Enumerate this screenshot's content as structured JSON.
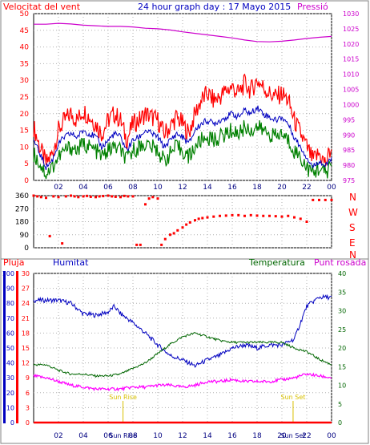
{
  "colors": {
    "wind": "#ff0000",
    "gust_avg": "#0000c0",
    "wind_min": "#008000",
    "pressure": "#cc00cc",
    "direction": "#ff0000",
    "humidity": "#0000c0",
    "temperature": "#006600",
    "dew": "#ff00ff",
    "rain": "#ff0000",
    "sunmark": "#d8c000"
  },
  "chart_data": [
    {
      "type": "line",
      "title": "24 hour graph day : 17 Mayo 2015",
      "left_label": "Velocitat del vent",
      "right_label": "Pressió",
      "x": {
        "ticks": [
          "02",
          "04",
          "06",
          "08",
          "10",
          "12",
          "14",
          "16",
          "18",
          "20",
          "22",
          "00"
        ]
      },
      "yleft": {
        "ticks": [
          "0",
          "5",
          "10",
          "15",
          "20",
          "25",
          "30",
          "35",
          "40",
          "45",
          "50"
        ],
        "ylim": [
          0,
          50
        ]
      },
      "yright": {
        "ticks": [
          "975",
          "980",
          "985",
          "990",
          "995",
          "1000",
          "1005",
          "1010",
          "1015",
          "1020",
          "1025",
          "1030"
        ],
        "ylim": [
          975,
          1030
        ]
      },
      "series": [
        {
          "key": "max",
          "hours": [
            0,
            0.5,
            1,
            1.5,
            2,
            2.5,
            3,
            3.5,
            4,
            4.5,
            5,
            5.5,
            6,
            6.5,
            7,
            7.5,
            8,
            8.5,
            9,
            9.5,
            10,
            10.5,
            11,
            11.5,
            12,
            12.5,
            13,
            13.5,
            14,
            14.5,
            15,
            15.5,
            16,
            16.5,
            17,
            17.5,
            18,
            18.5,
            19,
            19.5,
            20,
            20.5,
            21,
            21.5,
            22,
            22.5,
            23,
            23.5,
            24
          ],
          "values": [
            16,
            10,
            5,
            8,
            15,
            18,
            20,
            18,
            21,
            19,
            17,
            14,
            18,
            20,
            18,
            12,
            17,
            18,
            20,
            19,
            18,
            14,
            16,
            19,
            17,
            14,
            20,
            24,
            26,
            24,
            25,
            27,
            28,
            26,
            29,
            27,
            30,
            28,
            26,
            25,
            26,
            24,
            18,
            14,
            10,
            6,
            8,
            5,
            10
          ]
        },
        {
          "key": "avg",
          "hours": [
            0,
            0.5,
            1,
            1.5,
            2,
            2.5,
            3,
            3.5,
            4,
            4.5,
            5,
            5.5,
            6,
            6.5,
            7,
            7.5,
            8,
            8.5,
            9,
            9.5,
            10,
            10.5,
            11,
            11.5,
            12,
            12.5,
            13,
            13.5,
            14,
            14.5,
            15,
            15.5,
            16,
            16.5,
            17,
            17.5,
            18,
            18.5,
            19,
            19.5,
            20,
            20.5,
            21,
            21.5,
            22,
            22.5,
            23,
            23.5,
            24
          ],
          "values": [
            12,
            8,
            4,
            6,
            11,
            13,
            14,
            13,
            15,
            14,
            13,
            10,
            12,
            14,
            13,
            9,
            12,
            13,
            15,
            14,
            13,
            10,
            12,
            14,
            13,
            11,
            15,
            17,
            18,
            17,
            18,
            19,
            20,
            19,
            21,
            20,
            22,
            20,
            19,
            18,
            19,
            17,
            13,
            10,
            7,
            4,
            6,
            4,
            7
          ]
        },
        {
          "key": "min",
          "hours": [
            0,
            0.5,
            1,
            1.5,
            2,
            2.5,
            3,
            3.5,
            4,
            4.5,
            5,
            5.5,
            6,
            6.5,
            7,
            7.5,
            8,
            8.5,
            9,
            9.5,
            10,
            10.5,
            11,
            11.5,
            12,
            12.5,
            13,
            13.5,
            14,
            14.5,
            15,
            15.5,
            16,
            16.5,
            17,
            17.5,
            18,
            18.5,
            19,
            19.5,
            20,
            20.5,
            21,
            21.5,
            22,
            22.5,
            23,
            23.5,
            24
          ],
          "values": [
            8,
            5,
            2,
            4,
            7,
            9,
            10,
            9,
            11,
            10,
            9,
            7,
            9,
            10,
            9,
            6,
            9,
            10,
            11,
            10,
            9,
            6,
            8,
            10,
            9,
            7,
            10,
            12,
            13,
            12,
            13,
            14,
            15,
            14,
            16,
            15,
            16,
            15,
            14,
            13,
            14,
            12,
            9,
            7,
            4,
            2,
            4,
            2,
            5
          ]
        },
        {
          "key": "pressure",
          "hours": [
            0,
            1,
            2,
            3,
            4,
            5,
            6,
            7,
            8,
            9,
            10,
            11,
            12,
            13,
            14,
            15,
            16,
            17,
            18,
            19,
            20,
            21,
            22,
            23,
            24
          ],
          "values": [
            1026.5,
            1026.5,
            1026.8,
            1026.6,
            1026.2,
            1026,
            1025.8,
            1025.8,
            1025.6,
            1025.2,
            1025,
            1024.6,
            1024,
            1023.5,
            1023,
            1022.5,
            1022,
            1021.3,
            1020.8,
            1020.7,
            1020.9,
            1021.3,
            1021.8,
            1022.2,
            1022.5
          ]
        }
      ]
    },
    {
      "type": "scatter",
      "ytick_labels": [
        "360",
        "270",
        "180",
        "90",
        "0"
      ],
      "compass": [
        "N",
        "W",
        "S",
        "E",
        "N"
      ],
      "ylim": [
        0,
        360
      ],
      "hours": [
        0,
        0.3,
        0.6,
        1,
        1.3,
        1.6,
        2,
        2.3,
        2.6,
        3,
        3.3,
        3.6,
        4,
        4.3,
        4.6,
        5,
        5.3,
        5.6,
        6,
        6.3,
        6.6,
        7,
        7.3,
        7.6,
        8,
        8.3,
        8.6,
        9,
        9.3,
        9.6,
        10,
        10.3,
        10.6,
        11,
        11.3,
        11.6,
        12,
        12.3,
        12.6,
        13,
        13.3,
        13.6,
        14,
        14.5,
        15,
        15.5,
        16,
        16.5,
        17,
        17.5,
        18,
        18.5,
        19,
        19.5,
        20,
        20.5,
        21,
        21.5,
        22,
        22.5,
        23,
        23.5,
        24
      ],
      "values": [
        360,
        355,
        350,
        345,
        80,
        355,
        350,
        30,
        355,
        360,
        355,
        350,
        355,
        358,
        352,
        350,
        355,
        357,
        360,
        355,
        352,
        350,
        358,
        355,
        355,
        20,
        20,
        300,
        340,
        350,
        340,
        20,
        60,
        90,
        100,
        120,
        140,
        160,
        175,
        190,
        200,
        205,
        210,
        215,
        220,
        222,
        225,
        225,
        220,
        225,
        222,
        220,
        220,
        218,
        215,
        220,
        210,
        200,
        180,
        330,
        330,
        330,
        330
      ]
    },
    {
      "type": "line",
      "left_labels": [
        "Pluja",
        "Humitat"
      ],
      "right_labels": [
        "Temperatura",
        "Punt rosada"
      ],
      "y_rain": {
        "ticks": [
          "0",
          "3",
          "6",
          "9",
          "12",
          "15",
          "18",
          "21",
          "24",
          "27",
          "30"
        ],
        "ylim": [
          0,
          30
        ]
      },
      "y_hum": {
        "ticks": [
          "0",
          "10",
          "20",
          "30",
          "40",
          "50",
          "60",
          "70",
          "80",
          "90",
          "100"
        ],
        "ylim": [
          0,
          100
        ]
      },
      "y_temp": {
        "ticks": [
          "0",
          "5",
          "10",
          "15",
          "20",
          "25",
          "30",
          "35",
          "40"
        ],
        "ylim": [
          0,
          40
        ]
      },
      "sun": {
        "rise_label": "Sun Rise",
        "set_label": "Sun Set",
        "rise_hour": 7.2,
        "set_hour": 20.9
      },
      "series": [
        {
          "key": "humidity",
          "hours": [
            0,
            1,
            2,
            3,
            4,
            5,
            6,
            6.5,
            7,
            8,
            9,
            10,
            11,
            12,
            13,
            14,
            15,
            16,
            17,
            18,
            19,
            20,
            21,
            22,
            23,
            24
          ],
          "values": [
            82,
            82,
            82,
            80,
            73,
            72,
            74,
            78,
            73,
            67,
            60,
            52,
            45,
            42,
            38,
            42,
            45,
            50,
            52,
            50,
            52,
            52,
            56,
            78,
            84,
            84
          ]
        },
        {
          "key": "temperature",
          "hours": [
            0,
            1,
            2,
            3,
            4,
            5,
            6,
            7,
            8,
            9,
            10,
            11,
            12,
            13,
            14,
            15,
            16,
            17,
            18,
            19,
            20,
            21,
            22,
            23,
            24
          ],
          "values": [
            15.5,
            15.5,
            14,
            13,
            13,
            12.5,
            12.5,
            13,
            14.5,
            16,
            18.5,
            21,
            23,
            24,
            23,
            22,
            21.5,
            21.5,
            21.5,
            21.5,
            21.5,
            20,
            19,
            17,
            15.5
          ]
        },
        {
          "key": "dew",
          "hours": [
            0,
            1,
            2,
            3,
            4,
            5,
            6,
            7,
            8,
            9,
            10,
            11,
            12,
            13,
            14,
            15,
            16,
            17,
            18,
            19,
            20,
            21,
            22,
            23,
            24
          ],
          "values": [
            12.5,
            12,
            11,
            10,
            9.5,
            9,
            9,
            9,
            9.5,
            9.5,
            10,
            10,
            9.5,
            10,
            11,
            11,
            11.5,
            11,
            11,
            11,
            11.5,
            12,
            13,
            12.5,
            12
          ]
        },
        {
          "key": "rain",
          "hours": [
            0,
            24
          ],
          "values": [
            0,
            0
          ]
        }
      ]
    }
  ]
}
